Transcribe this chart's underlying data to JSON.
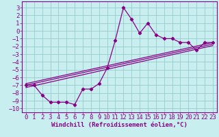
{
  "xlabel": "Windchill (Refroidissement éolien,°C)",
  "background_color": "#c8eef0",
  "line_color": "#880088",
  "grid_color": "#99cccc",
  "xlim": [
    -0.5,
    23.5
  ],
  "ylim": [
    -10.5,
    3.8
  ],
  "xticks": [
    0,
    1,
    2,
    3,
    4,
    5,
    6,
    7,
    8,
    9,
    10,
    11,
    12,
    13,
    14,
    15,
    16,
    17,
    18,
    19,
    20,
    21,
    22,
    23
  ],
  "yticks": [
    3,
    2,
    1,
    0,
    -1,
    -2,
    -3,
    -4,
    -5,
    -6,
    -7,
    -8,
    -9,
    -10
  ],
  "scatter_x": [
    0,
    1,
    2,
    3,
    4,
    5,
    6,
    7,
    8,
    9,
    10,
    11,
    12,
    13,
    14,
    15,
    16,
    17,
    18,
    19,
    20,
    21,
    22,
    23
  ],
  "scatter_y": [
    -7.0,
    -7.0,
    -8.3,
    -9.2,
    -9.2,
    -9.2,
    -9.5,
    -7.5,
    -7.5,
    -6.8,
    -4.8,
    -1.2,
    3.0,
    1.5,
    -0.3,
    1.0,
    -0.5,
    -1.0,
    -1.0,
    -1.5,
    -1.5,
    -2.5,
    -1.5,
    -1.5
  ],
  "line1_x": [
    0,
    23
  ],
  "line1_y": [
    -6.8,
    -1.5
  ],
  "line2_x": [
    0,
    23
  ],
  "line2_y": [
    -7.0,
    -1.7
  ],
  "line3_x": [
    0,
    23
  ],
  "line3_y": [
    -7.3,
    -1.9
  ],
  "tick_fontsize": 6.5,
  "xlabel_fontsize": 6.5
}
